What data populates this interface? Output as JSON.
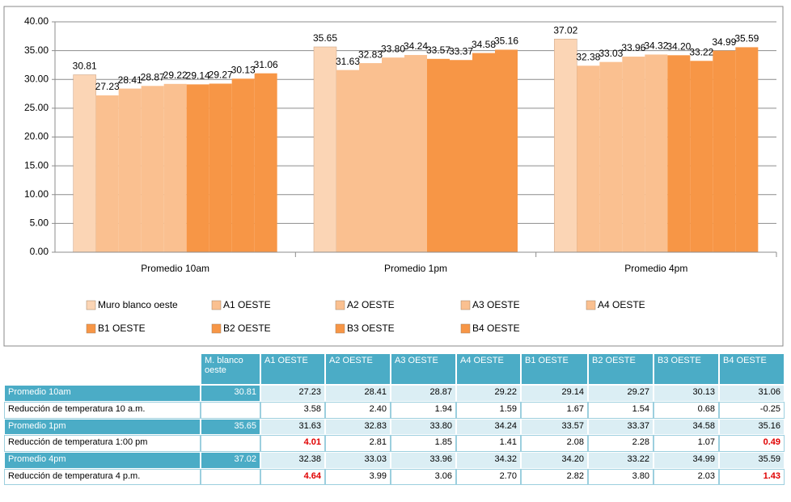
{
  "chart_data": {
    "type": "bar",
    "categories": [
      "Promedio 10am",
      "Promedio 1pm",
      "Promedio 4pm"
    ],
    "ylim": [
      0,
      40
    ],
    "yticks": [
      {
        "value": 0,
        "label": "0.00"
      },
      {
        "value": 5,
        "label": "5.00"
      },
      {
        "value": 10,
        "label": "10.00"
      },
      {
        "value": 15,
        "label": "15.00"
      },
      {
        "value": 20,
        "label": "20.00"
      },
      {
        "value": 25,
        "label": "25.00"
      },
      {
        "value": 30,
        "label": "30.00"
      },
      {
        "value": 35,
        "label": "35.00"
      },
      {
        "value": 40,
        "label": "40.00"
      }
    ],
    "grid": true,
    "series": [
      {
        "name": "Muro blanco oeste",
        "color": "#fbd5b5",
        "values": [
          30.81,
          35.65,
          37.02
        ],
        "value_labels": [
          "30.81",
          "35.65",
          "37.02"
        ]
      },
      {
        "name": "A1 OESTE",
        "color": "#fac090",
        "values": [
          27.23,
          31.63,
          32.38
        ],
        "value_labels": [
          "27.23",
          "31.63",
          "32.38"
        ]
      },
      {
        "name": "A2 OESTE",
        "color": "#fac090",
        "values": [
          28.41,
          32.83,
          33.03
        ],
        "value_labels": [
          "28.41",
          "32.83",
          "33.03"
        ]
      },
      {
        "name": "A3 OESTE",
        "color": "#fac090",
        "values": [
          28.87,
          33.8,
          33.96
        ],
        "value_labels": [
          "28.87",
          "33.80",
          "33.96"
        ]
      },
      {
        "name": "A4 OESTE",
        "color": "#fac090",
        "values": [
          29.22,
          34.24,
          34.32
        ],
        "value_labels": [
          "29.22",
          "34.24",
          "34.32"
        ]
      },
      {
        "name": "B1  OESTE",
        "color": "#f79646",
        "values": [
          29.14,
          33.57,
          34.2
        ],
        "value_labels": [
          "29.14",
          "33.57",
          "34.20"
        ]
      },
      {
        "name": "B2 OESTE",
        "color": "#f79646",
        "values": [
          29.27,
          33.37,
          33.22
        ],
        "value_labels": [
          "29.27",
          "33.37",
          "33.22"
        ]
      },
      {
        "name": "B3 OESTE",
        "color": "#f79646",
        "values": [
          30.13,
          34.58,
          34.99
        ],
        "value_labels": [
          "30.13",
          "34.58",
          "34.99"
        ]
      },
      {
        "name": "B4 OESTE",
        "color": "#f79646",
        "values": [
          31.06,
          35.16,
          35.59
        ],
        "value_labels": [
          "31.06",
          "35.16",
          "35.59"
        ]
      }
    ]
  },
  "table": {
    "header": [
      "M. blanco oeste",
      "A1 OESTE",
      "A2 OESTE",
      "A3 OESTE",
      "A4 OESTE",
      "B1 OESTE",
      "B2 OESTE",
      "B3 OESTE",
      "B4 OESTE"
    ],
    "rows": [
      {
        "label": "Promedio 10am",
        "shaded": true,
        "highlight": [],
        "cells": [
          "30.81",
          "27.23",
          "28.41",
          "28.87",
          "29.22",
          "29.14",
          "29.27",
          "30.13",
          "31.06"
        ]
      },
      {
        "label": "Reducción de temperatura 10 a.m.",
        "shaded": false,
        "highlight": [],
        "cells": [
          null,
          "3.58",
          "2.40",
          "1.94",
          "1.59",
          "1.67",
          "1.54",
          "0.68",
          "-0.25"
        ]
      },
      {
        "label": "Promedio 1pm",
        "shaded": true,
        "highlight": [],
        "cells": [
          "35.65",
          "31.63",
          "32.83",
          "33.80",
          "34.24",
          "33.57",
          "33.37",
          "34.58",
          "35.16"
        ]
      },
      {
        "label": "Reducción de temperatura 1:00 pm",
        "shaded": false,
        "highlight": [
          1,
          8
        ],
        "cells": [
          null,
          "4.01",
          "2.81",
          "1.85",
          "1.41",
          "2.08",
          "2.28",
          "1.07",
          "0.49"
        ]
      },
      {
        "label": "Promedio 4pm",
        "shaded": true,
        "highlight": [],
        "cells": [
          "37.02",
          "32.38",
          "33.03",
          "33.96",
          "34.32",
          "34.20",
          "33.22",
          "34.99",
          "35.59"
        ]
      },
      {
        "label": "Reducción de temperatura 4 p.m.",
        "shaded": false,
        "highlight": [
          1,
          8
        ],
        "cells": [
          null,
          "4.64",
          "3.99",
          "3.06",
          "2.70",
          "2.82",
          "3.80",
          "2.03",
          "1.43"
        ]
      }
    ]
  }
}
